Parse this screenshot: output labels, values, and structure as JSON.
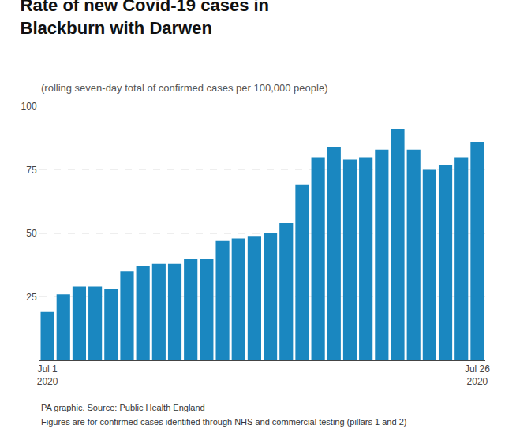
{
  "chart_data": {
    "type": "bar",
    "title": "Rate of new Covid-19 cases in\nBlackburn with Darwen",
    "subtitle": "(rolling seven-day total of confirmed cases per 100,000 people)",
    "categories": [
      "Jul 1\n2020",
      null,
      null,
      null,
      null,
      null,
      null,
      null,
      null,
      null,
      null,
      null,
      null,
      null,
      null,
      null,
      null,
      null,
      null,
      null,
      null,
      null,
      null,
      null,
      null,
      null,
      null,
      "Jul 26\n2020"
    ],
    "values": [
      19,
      26,
      29,
      29,
      28,
      35,
      37,
      38,
      38,
      40,
      40,
      47,
      48,
      49,
      50,
      54,
      69,
      80,
      84,
      79,
      80,
      83,
      91,
      83,
      75,
      77,
      80,
      86
    ],
    "color": "#1a87c0",
    "ylim": [
      0,
      100
    ],
    "yticks": [
      25,
      50,
      75,
      100
    ],
    "grid": true,
    "annotations": [
      "PA graphic. Source: Public Health England",
      "Figures are for confirmed cases identified through NHS and commercial testing (pillars 1 and 2)"
    ]
  }
}
